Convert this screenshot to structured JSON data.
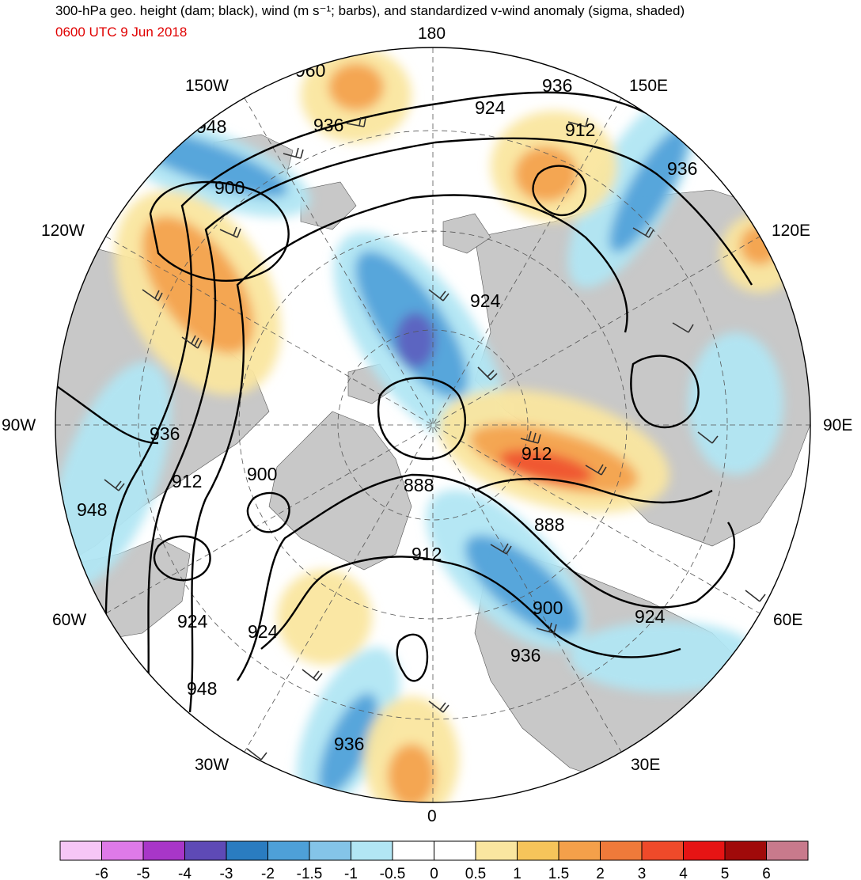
{
  "header": {
    "title": "300-hPa geo. height (dam; black), wind (m s⁻¹; barbs), and standardized v-wind anomaly (sigma, shaded)",
    "timestamp": "0600 UTC 9 Jun 2018"
  },
  "colors": {
    "timestamp": "#e00000",
    "land": "#c8c8c8",
    "ocean": "#ffffff",
    "contour": "#000000"
  },
  "longitude_labels": {
    "lon_180": "180",
    "lon_150e": "150E",
    "lon_120e": "120E",
    "lon_90e": "90E",
    "lon_60e": "60E",
    "lon_30e": "30E",
    "lon_0": "0",
    "lon_30w": "30W",
    "lon_60w": "60W",
    "lon_90w": "90W",
    "lon_120w": "120W",
    "lon_150w": "150W"
  },
  "height_contour_labels": [
    "960",
    "936",
    "948",
    "936",
    "924",
    "912",
    "936",
    "900",
    "924",
    "936",
    "912",
    "900",
    "888",
    "912",
    "888",
    "948",
    "924",
    "924",
    "900",
    "924",
    "936",
    "948",
    "936"
  ],
  "colorbar": {
    "tick_labels": [
      "-6",
      "-5",
      "-4",
      "-3",
      "-2",
      "-1.5",
      "-1",
      "-0.5",
      "0",
      "0.5",
      "1",
      "1.5",
      "2",
      "3",
      "4",
      "5",
      "6"
    ],
    "colors": [
      "#f6c6f6",
      "#de7ae8",
      "#a836c8",
      "#5e4ab6",
      "#2a7cc0",
      "#4ea0d8",
      "#84c4e8",
      "#b2e6f4",
      "#ffffff",
      "#ffffff",
      "#fae6a0",
      "#f6c45a",
      "#f4a04a",
      "#ef7a3a",
      "#ef4a2a",
      "#e61414",
      "#a00a0a",
      "#c87a8c"
    ]
  }
}
